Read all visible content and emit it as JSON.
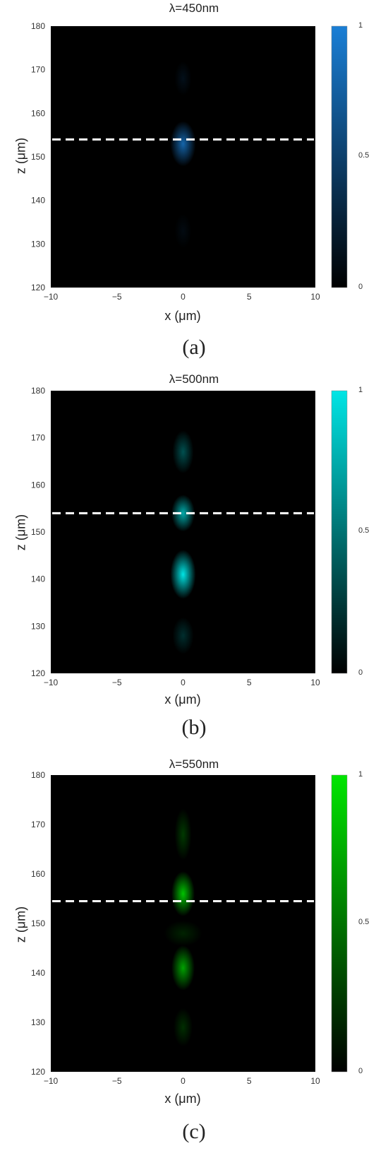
{
  "colors": {
    "background": "#000000",
    "dashed_line": "#ffffff",
    "panel_a_color": "#1a7fd6",
    "panel_b_color": "#00e5e5",
    "panel_c_color": "#00e600"
  },
  "panels": [
    {
      "title": "λ=450nm",
      "sublabel": "(a)",
      "xlabel": "x (μm)",
      "ylabel": "z (μm)",
      "cb_ticks": [
        "1",
        "0.5",
        "0"
      ]
    },
    {
      "title": "λ=500nm",
      "sublabel": "(b)",
      "xlabel": "x (μm)",
      "ylabel": "z (μm)",
      "cb_ticks": [
        "1",
        "0.5",
        "0"
      ]
    },
    {
      "title": "λ=550nm",
      "sublabel": "(c)",
      "xlabel": "x (μm)",
      "ylabel": "z (μm)",
      "cb_ticks": [
        "1",
        "0.5",
        "0"
      ]
    }
  ],
  "chart_data": [
    {
      "type": "heatmap",
      "title": "λ=450nm",
      "xlabel": "x (μm)",
      "ylabel": "z (μm)",
      "xlim": [
        -10,
        10
      ],
      "ylim": [
        120,
        180
      ],
      "x_ticks": [
        "−10",
        "−5",
        "0",
        "5",
        "10"
      ],
      "y_ticks": [
        "180",
        "170",
        "160",
        "150",
        "140",
        "130",
        "120"
      ],
      "colorbar": {
        "range": [
          0,
          1
        ],
        "ticks": [
          "1",
          "0.5",
          "0"
        ],
        "colormap": "black-to-blue"
      },
      "color": "#1a7fd6",
      "dashed_line_z": 154,
      "hotspots": [
        {
          "x": 0,
          "z": 153,
          "intensity": 0.8,
          "wx": 0.6,
          "wz": 4
        },
        {
          "x": 0,
          "z": 168,
          "intensity": 0.12,
          "wx": 0.4,
          "wz": 3
        },
        {
          "x": 0,
          "z": 133,
          "intensity": 0.08,
          "wx": 0.4,
          "wz": 3
        }
      ]
    },
    {
      "type": "heatmap",
      "title": "λ=500nm",
      "xlabel": "x (μm)",
      "ylabel": "z (μm)",
      "xlim": [
        -10,
        10
      ],
      "ylim": [
        120,
        180
      ],
      "x_ticks": [
        "−10",
        "−5",
        "0",
        "5",
        "10"
      ],
      "y_ticks": [
        "180",
        "170",
        "160",
        "150",
        "140",
        "130",
        "120"
      ],
      "colorbar": {
        "range": [
          0,
          1
        ],
        "ticks": [
          "1",
          "0.5",
          "0"
        ],
        "colormap": "black-to-cyan"
      },
      "color": "#00e5e5",
      "dashed_line_z": 154,
      "hotspots": [
        {
          "x": 0,
          "z": 141,
          "intensity": 1.0,
          "wx": 0.6,
          "wz": 4
        },
        {
          "x": 0,
          "z": 154,
          "intensity": 0.75,
          "wx": 0.55,
          "wz": 3
        },
        {
          "x": 0,
          "z": 167,
          "intensity": 0.35,
          "wx": 0.5,
          "wz": 3.5
        },
        {
          "x": 0,
          "z": 128,
          "intensity": 0.2,
          "wx": 0.5,
          "wz": 3
        }
      ]
    },
    {
      "type": "heatmap",
      "title": "λ=550nm",
      "xlabel": "x (μm)",
      "ylabel": "z (μm)",
      "xlim": [
        -10,
        10
      ],
      "ylim": [
        120,
        180
      ],
      "x_ticks": [
        "−10",
        "−5",
        "0",
        "5",
        "10"
      ],
      "y_ticks": [
        "180",
        "170",
        "160",
        "150",
        "140",
        "130",
        "120"
      ],
      "colorbar": {
        "range": [
          0,
          1
        ],
        "ticks": [
          "1",
          "0.5",
          "0"
        ],
        "colormap": "black-to-green"
      },
      "color": "#00e600",
      "dashed_line_z": 154.5,
      "hotspots": [
        {
          "x": 0,
          "z": 156,
          "intensity": 0.85,
          "wx": 0.55,
          "wz": 3.5
        },
        {
          "x": 0,
          "z": 141,
          "intensity": 0.7,
          "wx": 0.55,
          "wz": 3.5
        },
        {
          "x": 0,
          "z": 148,
          "intensity": 0.15,
          "wx": 0.9,
          "wz": 2
        },
        {
          "x": 0,
          "z": 168,
          "intensity": 0.25,
          "wx": 0.4,
          "wz": 4
        },
        {
          "x": 0,
          "z": 129,
          "intensity": 0.2,
          "wx": 0.45,
          "wz": 3
        }
      ]
    }
  ]
}
